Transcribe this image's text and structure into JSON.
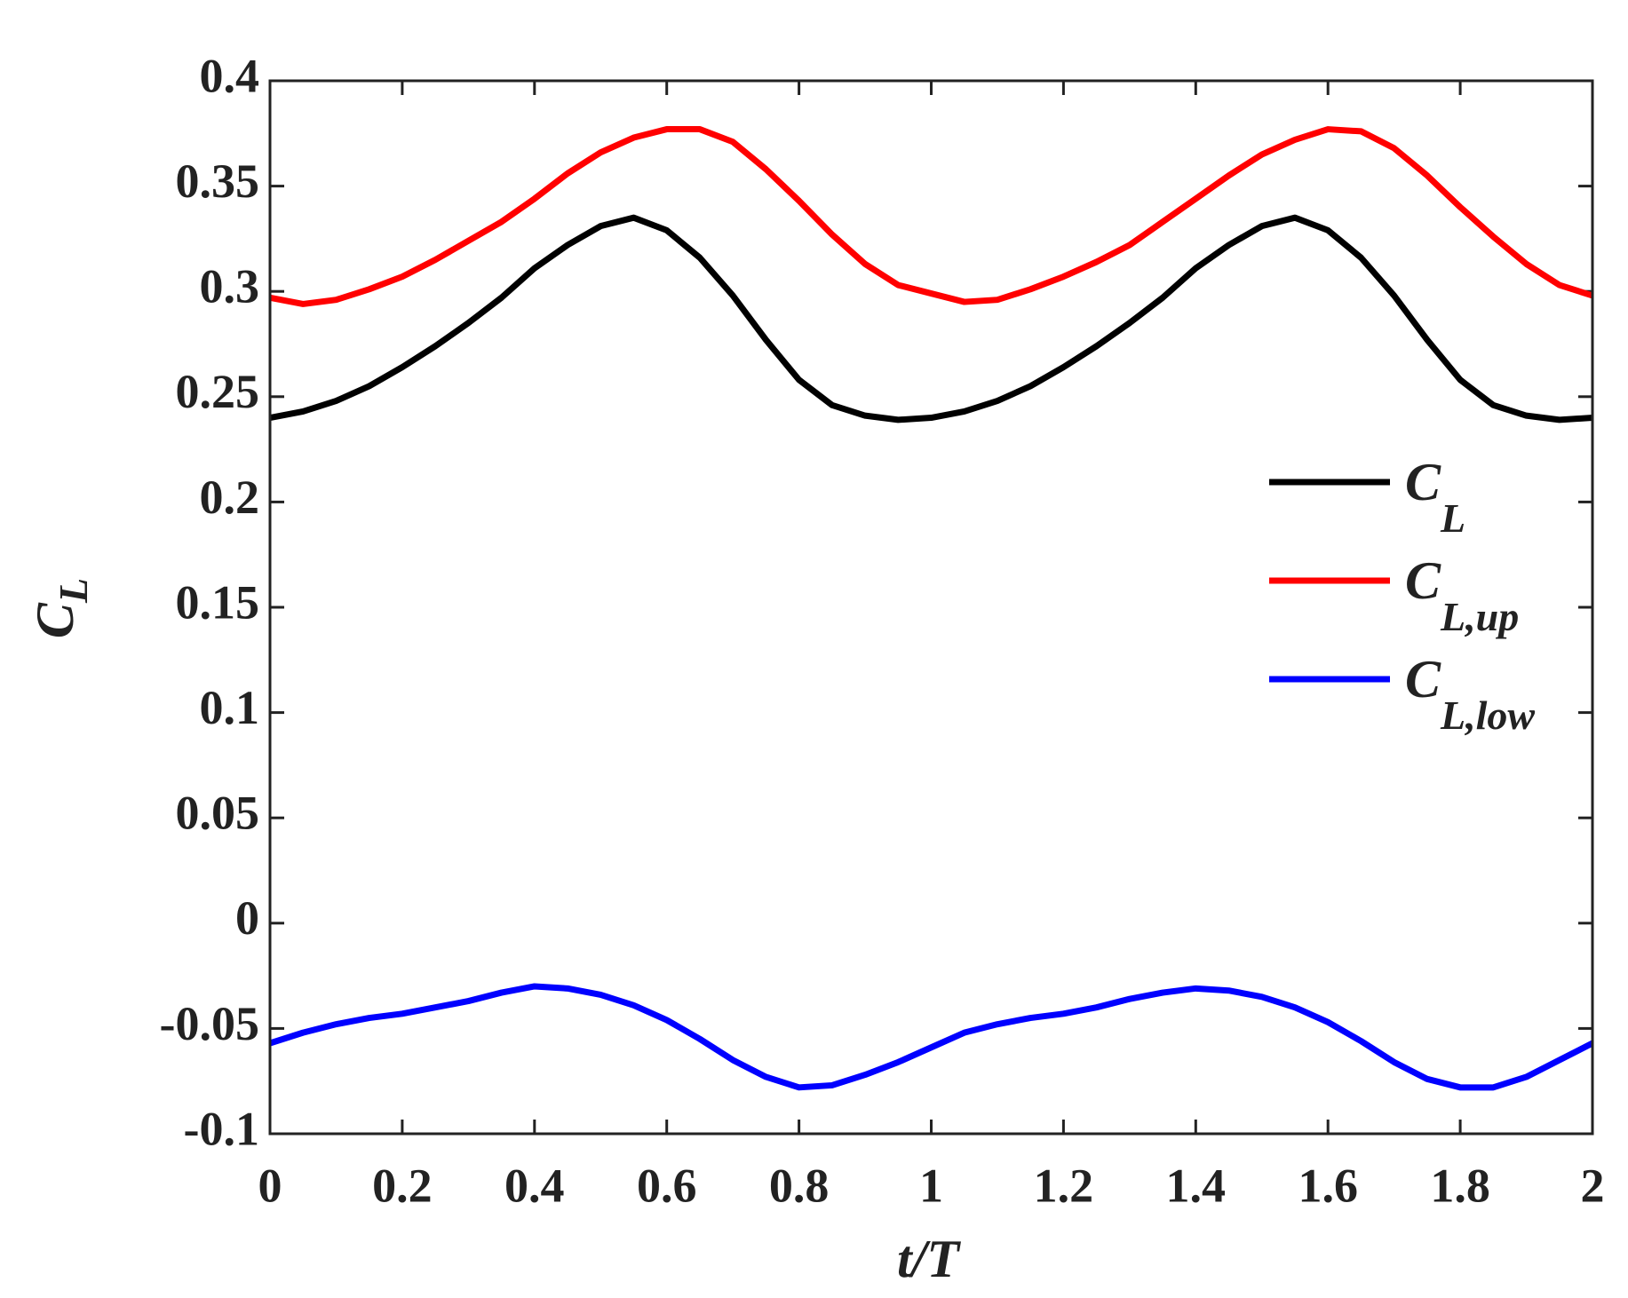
{
  "chart_data": {
    "type": "line",
    "xlabel": "t/T",
    "ylabel": "C",
    "ylabel_sub": "L",
    "x": [
      0,
      0.05,
      0.1,
      0.15,
      0.2,
      0.25,
      0.3,
      0.35,
      0.4,
      0.45,
      0.5,
      0.55,
      0.6,
      0.65,
      0.7,
      0.75,
      0.8,
      0.85,
      0.9,
      0.95,
      1.0,
      1.05,
      1.1,
      1.15,
      1.2,
      1.25,
      1.3,
      1.35,
      1.4,
      1.45,
      1.5,
      1.55,
      1.6,
      1.65,
      1.7,
      1.75,
      1.8,
      1.85,
      1.9,
      1.95,
      2.0
    ],
    "series": [
      {
        "name": "C",
        "subscript": "L",
        "color": "#000000",
        "values": [
          0.24,
          0.243,
          0.248,
          0.255,
          0.264,
          0.274,
          0.285,
          0.297,
          0.311,
          0.322,
          0.331,
          0.335,
          0.329,
          0.316,
          0.298,
          0.277,
          0.258,
          0.246,
          0.241,
          0.239,
          0.24,
          0.243,
          0.248,
          0.255,
          0.264,
          0.274,
          0.285,
          0.297,
          0.311,
          0.322,
          0.331,
          0.335,
          0.329,
          0.316,
          0.298,
          0.277,
          0.258,
          0.246,
          0.241,
          0.239,
          0.24
        ]
      },
      {
        "name": "C",
        "subscript": "L,up",
        "color": "#ff0000",
        "values": [
          0.297,
          0.294,
          0.296,
          0.301,
          0.307,
          0.315,
          0.324,
          0.333,
          0.344,
          0.356,
          0.366,
          0.373,
          0.377,
          0.377,
          0.371,
          0.358,
          0.343,
          0.327,
          0.313,
          0.303,
          0.299,
          0.295,
          0.296,
          0.301,
          0.307,
          0.314,
          0.322,
          0.333,
          0.344,
          0.355,
          0.365,
          0.372,
          0.377,
          0.376,
          0.368,
          0.355,
          0.34,
          0.326,
          0.313,
          0.303,
          0.298
        ]
      },
      {
        "name": "C",
        "subscript": "L,low",
        "color": "#0000ff",
        "values": [
          -0.057,
          -0.052,
          -0.048,
          -0.045,
          -0.043,
          -0.04,
          -0.037,
          -0.033,
          -0.03,
          -0.031,
          -0.034,
          -0.039,
          -0.046,
          -0.055,
          -0.065,
          -0.073,
          -0.078,
          -0.077,
          -0.072,
          -0.066,
          -0.059,
          -0.052,
          -0.048,
          -0.045,
          -0.043,
          -0.04,
          -0.036,
          -0.033,
          -0.031,
          -0.032,
          -0.035,
          -0.04,
          -0.047,
          -0.056,
          -0.066,
          -0.074,
          -0.078,
          -0.078,
          -0.073,
          -0.065,
          -0.057
        ]
      }
    ],
    "xlim": [
      0,
      2
    ],
    "xticks": [
      0,
      0.2,
      0.4,
      0.6,
      0.8,
      1,
      1.2,
      1.4,
      1.6,
      1.8,
      2
    ],
    "ylim": [
      -0.1,
      0.4
    ],
    "yticks": [
      -0.1,
      -0.05,
      0,
      0.05,
      0.1,
      0.15,
      0.2,
      0.25,
      0.3,
      0.35,
      0.4
    ],
    "grid": false,
    "legend": "east"
  }
}
